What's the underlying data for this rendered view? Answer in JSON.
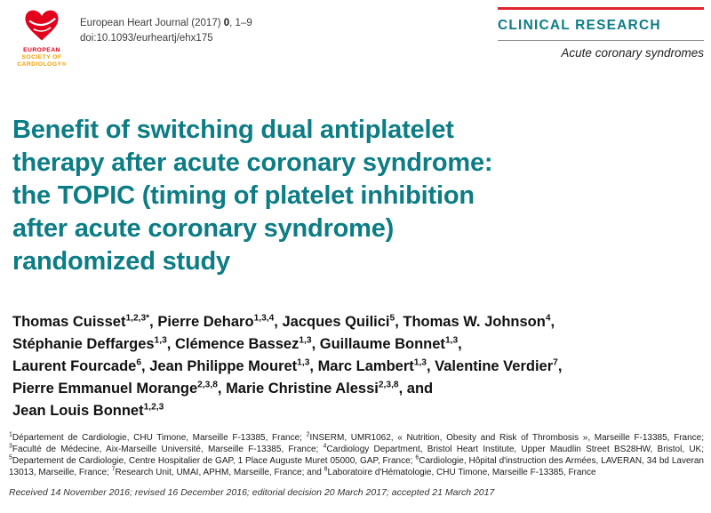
{
  "colors": {
    "title_teal": "#0c7d85",
    "rule_red": "#e0262c",
    "esc_red": "#e2001a",
    "esc_gold": "#f0a000"
  },
  "header": {
    "logo": {
      "icon": "esc-heart-logo",
      "org_lines": [
        "EUROPEAN",
        "SOCIETY OF",
        "CARDIOLOGY®"
      ]
    },
    "journal_prefix": "European Heart Journal (2017) ",
    "journal_volume": "0",
    "journal_pages": ", 1–9",
    "doi_line": "doi:10.1093/eurheartj/ehx175",
    "section_label": "CLINICAL RESEARCH",
    "section_subtitle": "Acute coronary syndromes"
  },
  "article": {
    "title_lines": [
      "Benefit of switching dual antiplatelet",
      "therapy after acute coronary syndrome:",
      "the TOPIC (timing of platelet inhibition",
      "after acute coronary syndrome)",
      "randomized study"
    ],
    "author_lines": [
      [
        {
          "name": "Thomas Cuisset",
          "sup": "1,2,3*",
          "after": ", "
        },
        {
          "name": "Pierre Deharo",
          "sup": "1,3,4",
          "after": ", "
        },
        {
          "name": "Jacques Quilici",
          "sup": "5",
          "after": ", "
        },
        {
          "name": "Thomas W. Johnson",
          "sup": "4",
          "after": ","
        }
      ],
      [
        {
          "name": "Stéphanie Deffarges",
          "sup": "1,3",
          "after": ", "
        },
        {
          "name": "Clémence Bassez",
          "sup": "1,3",
          "after": ", "
        },
        {
          "name": "Guillaume Bonnet",
          "sup": "1,3",
          "after": ","
        }
      ],
      [
        {
          "name": "Laurent Fourcade",
          "sup": "6",
          "after": ", "
        },
        {
          "name": "Jean Philippe Mouret",
          "sup": "1,3",
          "after": ", "
        },
        {
          "name": "Marc Lambert",
          "sup": "1,3",
          "after": ", "
        },
        {
          "name": "Valentine Verdier",
          "sup": "7",
          "after": ","
        }
      ],
      [
        {
          "name": "Pierre Emmanuel Morange",
          "sup": "2,3,8",
          "after": ", "
        },
        {
          "name": "Marie Christine Alessi",
          "sup": "2,3,8",
          "after": ", and"
        }
      ],
      [
        {
          "name": "Jean Louis Bonnet",
          "sup": "1,2,3",
          "after": ""
        }
      ]
    ],
    "affiliations": [
      {
        "sup": "1",
        "text": "Département de Cardiologie, CHU Timone, Marseille F-13385, France",
        "sep": "; "
      },
      {
        "sup": "2",
        "text": "INSERM, UMR1062, « Nutrition, Obesity and Risk of Thrombosis », Marseille F-13385, France",
        "sep": "; "
      },
      {
        "sup": "3",
        "text": "Faculté de Médecine, Aix-Marseille Université, Marseille F-13385, France",
        "sep": "; "
      },
      {
        "sup": "4",
        "text": "Cardiology Department, Bristol Heart Institute, Upper Maudlin Street BS28HW, Bristol, UK",
        "sep": "; "
      },
      {
        "sup": "5",
        "text": "Departement de Cardiologie, Centre Hospitalier de GAP, 1 Place Auguste Muret 05000, GAP, France",
        "sep": "; "
      },
      {
        "sup": "6",
        "text": "Cardiologie, Hôpital d'instruction des Armées, LAVERAN, 34 bd Laveran 13013, Marseille, France",
        "sep": "; "
      },
      {
        "sup": "7",
        "text": "Research Unit, UMAI, APHM, Marseille, France",
        "sep": "; and "
      },
      {
        "sup": "8",
        "text": "Laboratoire d'Hématologie, CHU Timone, Marseille F-13385, France",
        "sep": ""
      }
    ],
    "received_line": "Received 14 November 2016; revised 16 December 2016; editorial decision 20 March 2017; accepted 21 March 2017"
  }
}
